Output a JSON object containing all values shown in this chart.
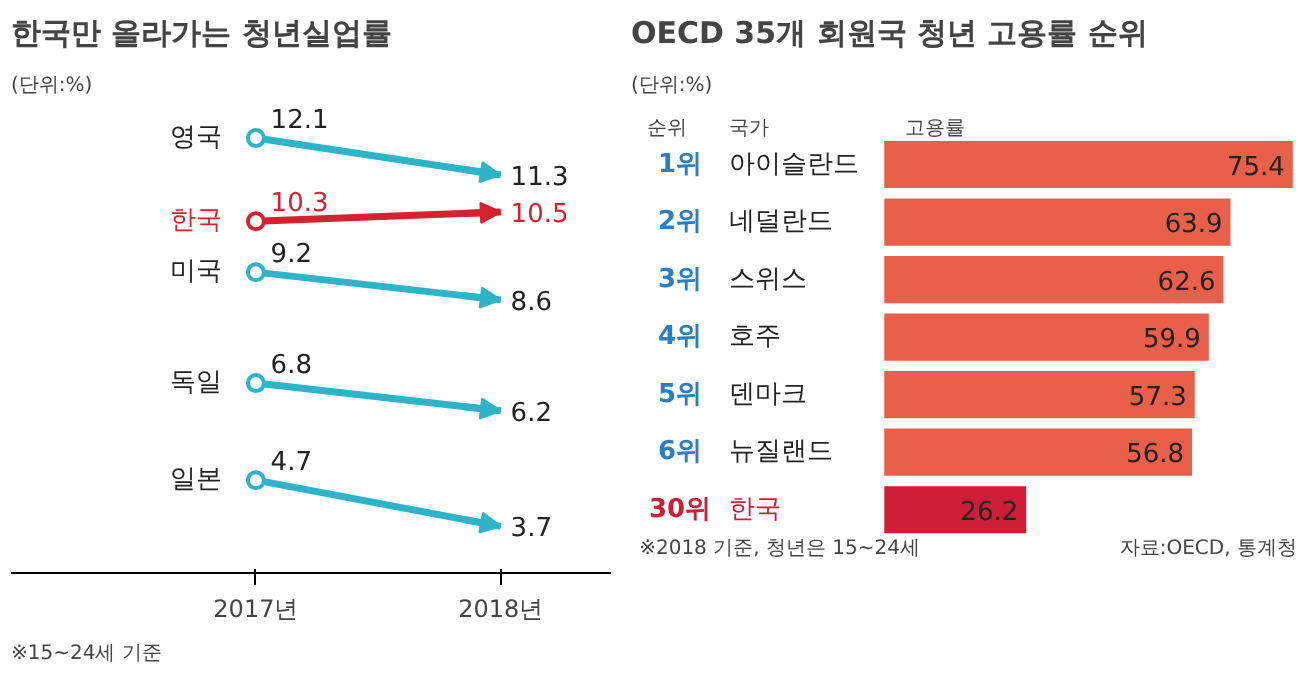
{
  "chart_data": [
    {
      "type": "line",
      "title": "한국만 올라가는 청년실업률",
      "subtitle": "(단위:%)",
      "categories": [
        "2017년",
        "2018년"
      ],
      "marker": "circle",
      "data_labels": true,
      "grid": false,
      "series": [
        {
          "name": "영국",
          "color": "#2fb3c9",
          "values": [
            12.1,
            11.3
          ]
        },
        {
          "name": "한국",
          "color": "#d2232f",
          "values": [
            10.3,
            10.5
          ]
        },
        {
          "name": "미국",
          "color": "#2fb3c9",
          "values": [
            9.2,
            8.6
          ]
        },
        {
          "name": "독일",
          "color": "#2fb3c9",
          "values": [
            6.8,
            6.2
          ]
        },
        {
          "name": "일본",
          "color": "#2fb3c9",
          "values": [
            4.7,
            3.7
          ]
        }
      ],
      "annotations": [
        "※15~24세 기준"
      ]
    },
    {
      "type": "bar",
      "orientation": "horizontal",
      "title": "OECD 35개 회원국 청년 고용률 순위",
      "subtitle": "(단위:%)",
      "categories": [
        "아이슬란드",
        "네덜란드",
        "스위스",
        "호주",
        "덴마크",
        "뉴질랜드",
        "한국"
      ],
      "values": [
        75.4,
        63.9,
        62.6,
        59.9,
        57.3,
        56.8,
        26.2
      ],
      "colors": [
        "#e8604a",
        "#e8604a",
        "#e8604a",
        "#e8604a",
        "#e8604a",
        "#e8604a",
        "#cc1f36"
      ],
      "data_labels": true,
      "grid": false,
      "annotations": [
        "순위",
        "국가",
        "고용률",
        "※2018 기준, 청년은 15~24세",
        "자료:OECD, 통계청",
        "1위",
        "2위",
        "3위",
        "4위",
        "5위",
        "6위",
        "30위"
      ]
    }
  ]
}
